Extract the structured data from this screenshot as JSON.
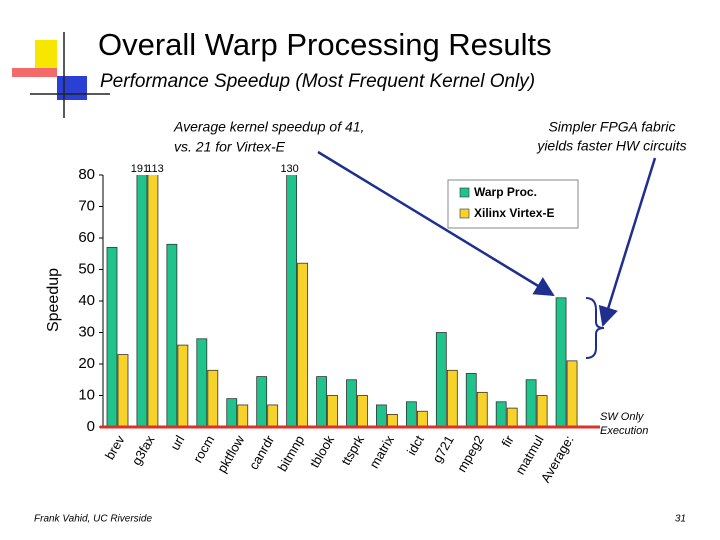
{
  "chart_data": {
    "type": "bar",
    "title": "Overall Warp Processing Results",
    "subtitle": "Performance Speedup (Most Frequent Kernel Only)",
    "y_label": "Speedup",
    "categories": [
      "brev",
      "g3fax",
      "url",
      "rocm",
      "pktflow",
      "canrdr",
      "bitmnp",
      "tblook",
      "ttsprk",
      "matrix",
      "idct",
      "g721",
      "mpeg2",
      "fir",
      "matmul",
      "Average:"
    ],
    "series": [
      {
        "name": "Warp Proc.",
        "color": "#1fc48c",
        "values": [
          57,
          191,
          58,
          28,
          9,
          16,
          130,
          16,
          15,
          7,
          8,
          30,
          17,
          8,
          15,
          41
        ],
        "value_labels": [
          null,
          "191",
          null,
          null,
          null,
          null,
          "130",
          null,
          null,
          null,
          null,
          null,
          null,
          null,
          null,
          null
        ]
      },
      {
        "name": "Xilinx Virtex-E",
        "color": "#f6d22a",
        "values": [
          23,
          113,
          26,
          18,
          7,
          7,
          52,
          10,
          10,
          4,
          5,
          18,
          11,
          6,
          10,
          21
        ],
        "value_labels": [
          null,
          "113",
          null,
          null,
          null,
          null,
          null,
          null,
          null,
          null,
          null,
          null,
          null,
          null,
          null,
          null
        ]
      }
    ],
    "ylim": [
      0,
      80
    ],
    "yticks": [
      0,
      10,
      20,
      30,
      40,
      50,
      60,
      70,
      80
    ],
    "legend": "upper right",
    "annotations": [
      {
        "lines": [
          "Average kernel speedup of 41,",
          "vs. 21 for Virtex-E"
        ]
      },
      {
        "lines": [
          "Simpler FPGA fabric",
          "yields faster HW circuits"
        ]
      },
      {
        "lines": [
          "SW Only",
          "Execution"
        ]
      }
    ],
    "footer": "Frank Vahid, UC Riverside",
    "page_number": "31"
  }
}
